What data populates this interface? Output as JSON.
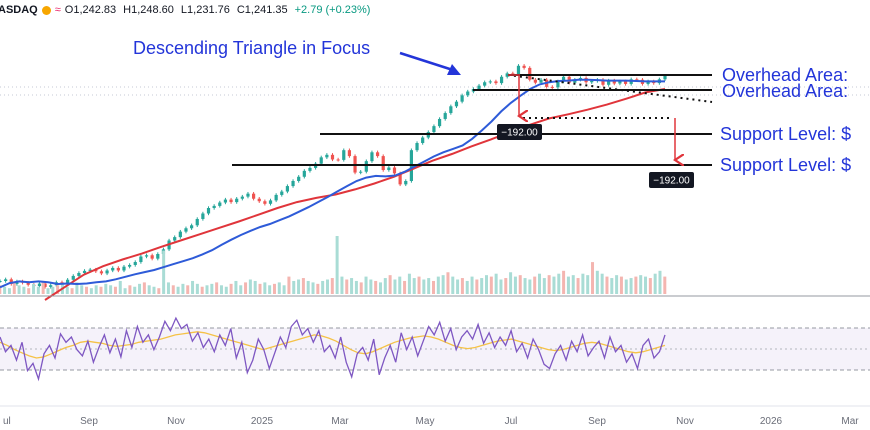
{
  "header": {
    "symbol": "ASDAQ",
    "open": "O1,242.83",
    "high": "H1,248.60",
    "low": "L1,231.76",
    "close": "C1,241.35",
    "change": "+2.79 (+0.23%)",
    "colors": {
      "up": "#089981",
      "dot": "#f7a600",
      "wave": "#e91e63"
    }
  },
  "annotations": {
    "title": "Descending Triangle in Focus",
    "overhead_1": "Overhead Area: ",
    "overhead_2": "Overhead Area: ",
    "support_1": "Support Level: $",
    "support_2": "Support Level: $",
    "target_1": "−192.00",
    "target_2": "−192.00",
    "color": "#2335d9"
  },
  "chart_data": {
    "type": "line",
    "x_axis_labels": [
      "ul",
      "Sep",
      "Nov",
      "2025",
      "Mar",
      "May",
      "Jul",
      "Sep",
      "Nov",
      "2026",
      "Mar"
    ],
    "colors": {
      "ma50": "#2e5bd8",
      "ma200": "#e0353b",
      "up": "#26a69a",
      "down": "#ef5350",
      "rsi": "#7e57c2",
      "rsi_ma": "#f5c246"
    },
    "price_series": {
      "name": "",
      "values": [
        745,
        749,
        738,
        744,
        741,
        736,
        733,
        739,
        731,
        735,
        742,
        740,
        748,
        757,
        764,
        769,
        772,
        768,
        763,
        770,
        776,
        770,
        779,
        783,
        790,
        803,
        806,
        798,
        809,
        820,
        841,
        849,
        862,
        870,
        877,
        892,
        905,
        918,
        923,
        931,
        938,
        932,
        940,
        945,
        952,
        940,
        934,
        928,
        936,
        949,
        957,
        970,
        982,
        992,
        1006,
        1013,
        1023,
        1038,
        1044,
        1033,
        1032,
        1055,
        1041,
        1002,
        1004,
        1029,
        1050,
        1041,
        1008,
        1014,
        1000,
        974,
        982,
        1055,
        1072,
        1085,
        1098,
        1112,
        1129,
        1143,
        1159,
        1170,
        1185,
        1194,
        1200,
        1208,
        1216,
        1218,
        1214,
        1229,
        1237,
        1235,
        1255,
        1250,
        1222,
        1215,
        1222,
        1205,
        1204,
        1218,
        1229,
        1215,
        1222,
        1226,
        1216,
        1219,
        1222,
        1210,
        1220,
        1213,
        1218,
        1212,
        1223,
        1222,
        1212,
        1218,
        1214,
        1223,
        1231
      ]
    },
    "ma50_values": [
      730,
      740,
      744,
      742,
      744,
      742,
      738,
      739,
      738,
      739,
      742,
      744,
      749,
      755,
      761,
      766,
      771,
      778,
      785,
      792,
      799,
      808,
      818,
      831,
      843,
      854,
      864,
      873,
      880,
      889,
      898,
      909,
      920,
      932,
      944,
      957,
      970,
      982,
      990,
      994,
      993,
      995,
      1004,
      1016,
      1028,
      1040,
      1050,
      1058,
      1066,
      1082,
      1102,
      1123,
      1147,
      1167,
      1184,
      1200,
      1211,
      1216,
      1219,
      1220,
      1222,
      1222,
      1221,
      1220,
      1220,
      1220,
      1219,
      1218,
      1218,
      1218
    ],
    "ma200_values": [
      700,
      730,
      760,
      780,
      796,
      810,
      826,
      841,
      856,
      871,
      886,
      902,
      918,
      932,
      942,
      950,
      962,
      976,
      992,
      1011,
      1030,
      1046,
      1064,
      1080,
      1098,
      1115,
      1130,
      1140,
      1151,
      1163,
      1177,
      1192,
      1200
    ],
    "volume_values": [
      6,
      5,
      4,
      8,
      6,
      5,
      4,
      7,
      5,
      9,
      4,
      5,
      6,
      7,
      5,
      4,
      8,
      6,
      5,
      4,
      6,
      5,
      7,
      6,
      5,
      9,
      4,
      6,
      5,
      7,
      8,
      6,
      5,
      4,
      30,
      8,
      6,
      5,
      7,
      6,
      9,
      7,
      5,
      6,
      7,
      8,
      6,
      5,
      7,
      9,
      6,
      8,
      10,
      9,
      7,
      8,
      6,
      7,
      8,
      6,
      12,
      9,
      10,
      11,
      9,
      8,
      7,
      9,
      10,
      11,
      40,
      12,
      10,
      11,
      9,
      8,
      12,
      10,
      9,
      8,
      11,
      13,
      10,
      12,
      9,
      14,
      11,
      12,
      10,
      11,
      9,
      12,
      13,
      15,
      12,
      10,
      11,
      9,
      12,
      10,
      11,
      13,
      12,
      14,
      10,
      11,
      15,
      12,
      13,
      11,
      10,
      12,
      14,
      11,
      13,
      12,
      14,
      16,
      12,
      13,
      11,
      14,
      13,
      22,
      16,
      14,
      12,
      11,
      13,
      12,
      10,
      11,
      12,
      13,
      12,
      11,
      14,
      16,
      12
    ],
    "rsi_values": [
      60,
      46,
      52,
      38,
      55,
      28,
      35,
      20,
      44,
      52,
      40,
      63,
      55,
      60,
      48,
      42,
      56,
      36,
      50,
      62,
      45,
      58,
      41,
      66,
      50,
      70,
      55,
      62,
      48,
      60,
      75,
      66,
      78,
      68,
      72,
      56,
      64,
      50,
      58,
      46,
      62,
      52,
      68,
      40,
      55,
      26,
      38,
      58,
      48,
      30,
      45,
      60,
      50,
      70,
      76,
      62,
      68,
      55,
      66,
      46,
      52,
      40,
      60,
      36,
      22,
      44,
      50,
      38,
      58,
      24,
      40,
      52,
      36,
      64,
      48,
      60,
      42,
      56,
      70,
      62,
      74,
      56,
      68,
      48,
      60,
      66,
      58,
      72,
      54,
      64,
      50,
      60,
      52,
      66,
      46,
      54,
      40,
      58,
      48,
      34,
      30,
      44,
      52,
      38,
      56,
      46,
      62,
      42,
      50,
      56,
      40,
      60,
      46,
      52,
      36,
      44,
      30,
      52,
      58,
      40,
      46,
      62
    ],
    "rsi_ma_values": [
      55,
      52,
      48,
      45,
      42,
      40,
      41,
      44,
      47,
      50,
      52,
      55,
      56,
      55,
      54,
      52,
      51,
      52,
      53,
      55,
      56,
      57,
      58,
      60,
      62,
      63,
      64,
      65,
      64,
      62,
      60,
      58,
      56,
      54,
      52,
      50,
      48,
      50,
      52,
      54,
      56,
      58,
      60,
      62,
      61,
      59,
      56,
      52,
      48,
      45,
      44,
      46,
      49,
      52,
      55,
      57,
      59,
      60,
      61,
      60,
      58,
      55,
      52,
      50,
      49,
      50,
      52,
      54,
      56,
      57,
      58,
      56,
      54,
      52,
      50,
      48,
      47,
      48,
      50,
      52,
      54,
      55,
      54,
      52,
      50,
      48,
      46,
      45,
      46,
      48,
      50,
      52
    ]
  }
}
